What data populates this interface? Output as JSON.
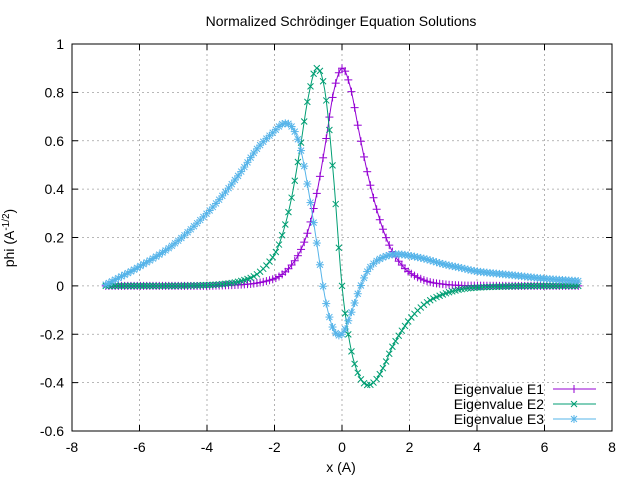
{
  "chart_data": {
    "type": "scatter",
    "title": "Normalized Schrödinger Equation Solutions",
    "xlabel": "x (A)",
    "ylabel_main": "phi (A",
    "ylabel_sup": "-1/2",
    "ylabel_end": ")",
    "xlim": [
      -8,
      8
    ],
    "ylim": [
      -0.6,
      1
    ],
    "xticks": [
      "-8",
      "-6",
      "-4",
      "-2",
      "0",
      "2",
      "4",
      "6",
      "8"
    ],
    "yticks": [
      "-0.6",
      "-0.4",
      "-0.2",
      "0",
      "0.2",
      "0.4",
      "0.6",
      "0.8",
      "1"
    ],
    "grid": true,
    "legend_position": "bottom-right",
    "series": [
      {
        "name": "Eigenvalue E1",
        "color": "#9400d3",
        "marker": "plus",
        "x": [
          -7,
          -6,
          -5,
          -4,
          -3.5,
          -3,
          -2.5,
          -2,
          -1.75,
          -1.5,
          -1.25,
          -1,
          -0.75,
          -0.5,
          -0.25,
          0,
          0.25,
          0.5,
          0.75,
          1,
          1.25,
          1.5,
          1.75,
          2,
          2.5,
          3,
          3.5,
          4,
          5,
          6,
          7
        ],
        "y": [
          0,
          0,
          0,
          0,
          0.002,
          0.005,
          0.012,
          0.03,
          0.05,
          0.085,
          0.14,
          0.23,
          0.38,
          0.58,
          0.8,
          0.9,
          0.82,
          0.64,
          0.47,
          0.33,
          0.22,
          0.14,
          0.09,
          0.055,
          0.02,
          0.007,
          0.002,
          0.001,
          0,
          0,
          0
        ]
      },
      {
        "name": "Eigenvalue E2",
        "color": "#009e73",
        "marker": "cross",
        "x": [
          -7,
          -6,
          -5,
          -4,
          -3.5,
          -3,
          -2.5,
          -2,
          -1.75,
          -1.5,
          -1.25,
          -1,
          -0.75,
          -0.5,
          -0.25,
          0,
          0.25,
          0.5,
          0.75,
          1,
          1.25,
          1.5,
          2,
          2.5,
          3,
          3.5,
          4,
          5,
          6,
          7
        ],
        "y": [
          0,
          0,
          0,
          0.003,
          0.008,
          0.02,
          0.05,
          0.13,
          0.22,
          0.36,
          0.56,
          0.78,
          0.9,
          0.8,
          0.45,
          0,
          -0.25,
          -0.37,
          -0.41,
          -0.39,
          -0.33,
          -0.25,
          -0.14,
          -0.07,
          -0.035,
          -0.015,
          -0.007,
          -0.002,
          0,
          0
        ]
      },
      {
        "name": "Eigenvalue E3",
        "color": "#56b4e9",
        "marker": "star",
        "x": [
          -7,
          -6,
          -5,
          -4,
          -3.5,
          -3,
          -2.5,
          -2,
          -1.75,
          -1.5,
          -1.25,
          -1,
          -0.75,
          -0.5,
          -0.25,
          0,
          0.25,
          0.5,
          0.75,
          1,
          1.25,
          1.5,
          1.75,
          2,
          2.5,
          3,
          3.5,
          4,
          5,
          6,
          7
        ],
        "y": [
          0.005,
          0.08,
          0.17,
          0.3,
          0.38,
          0.47,
          0.57,
          0.64,
          0.67,
          0.66,
          0.58,
          0.4,
          0.18,
          -0.05,
          -0.18,
          -0.2,
          -0.12,
          -0.02,
          0.06,
          0.1,
          0.12,
          0.13,
          0.13,
          0.125,
          0.11,
          0.09,
          0.075,
          0.06,
          0.045,
          0.03,
          0.02
        ]
      }
    ]
  }
}
